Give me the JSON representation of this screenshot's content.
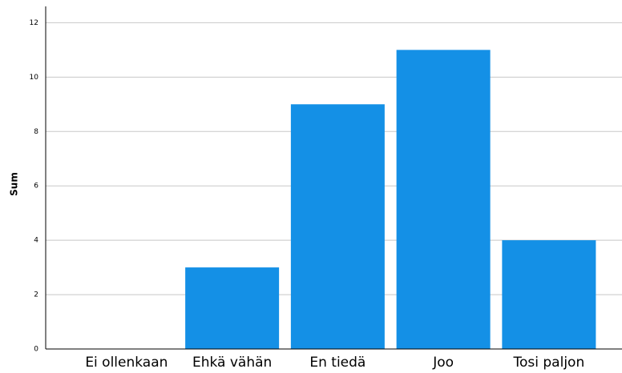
{
  "chart_data": {
    "type": "bar",
    "y_label": "Sum",
    "categories": [
      "Ei ollenkaan",
      "Ehkä vähän",
      "En tiedä",
      "Joo",
      "Tosi paljon"
    ],
    "values": [
      0,
      3,
      9,
      11,
      4
    ],
    "color": "#1490e6",
    "ylim": [
      0,
      12.6
    ],
    "yticks": [
      0,
      2,
      4,
      6,
      8,
      10,
      12
    ],
    "grid": true
  }
}
